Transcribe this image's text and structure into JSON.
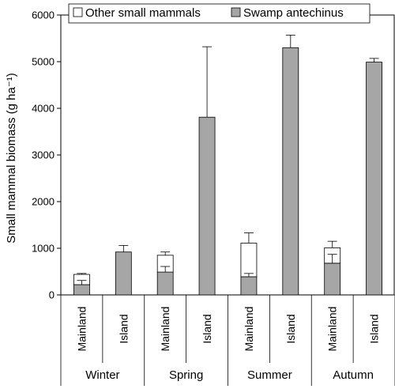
{
  "chart_data": {
    "type": "bar",
    "stacked": true,
    "title": "",
    "xlabel": "",
    "ylabel": "Small mammal biomass (g ha⁻¹)",
    "ylim": [
      0,
      6000
    ],
    "yticks": [
      0,
      1000,
      2000,
      3000,
      4000,
      5000,
      6000
    ],
    "grid": false,
    "legend_position": "top",
    "groups": [
      {
        "name": "Winter",
        "categories": [
          "Mainland",
          "Island"
        ]
      },
      {
        "name": "Spring",
        "categories": [
          "Mainland",
          "Island"
        ]
      },
      {
        "name": "Summer",
        "categories": [
          "Mainland",
          "Island"
        ]
      },
      {
        "name": "Autumn",
        "categories": [
          "Mainland",
          "Island"
        ]
      }
    ],
    "categories": [
      "Mainland",
      "Island",
      "Mainland",
      "Island",
      "Mainland",
      "Island",
      "Mainland",
      "Island"
    ],
    "series": [
      {
        "name": "Swamp antechinus",
        "color": "#a6a6a6",
        "values": [
          220,
          920,
          490,
          3810,
          390,
          5300,
          680,
          4990
        ],
        "error_top": [
          310,
          1060,
          610,
          5320,
          460,
          5570,
          870,
          5070
        ]
      },
      {
        "name": "Other small mammals",
        "color": "#ffffff",
        "values": [
          220,
          0,
          360,
          0,
          720,
          0,
          330,
          0
        ],
        "error_top": [
          460,
          null,
          920,
          null,
          1330,
          null,
          1150,
          null
        ]
      }
    ]
  }
}
